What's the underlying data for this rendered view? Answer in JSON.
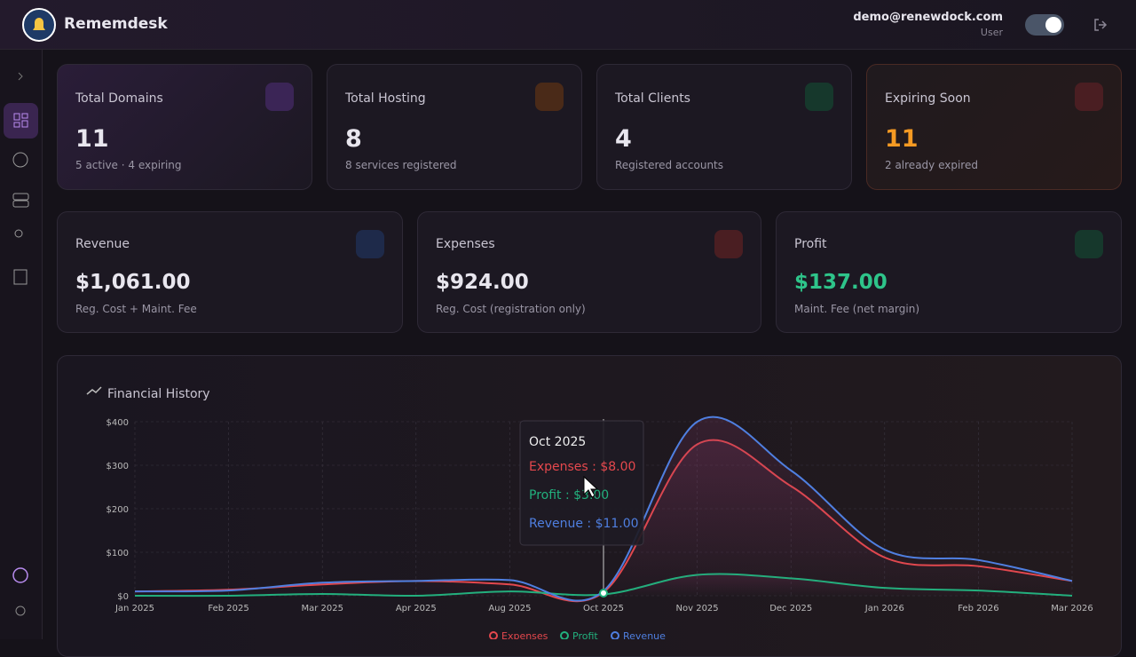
{
  "header": {
    "brand": "Rememdesk",
    "email": "demo@renewdock.com",
    "role": "User"
  },
  "stats": [
    {
      "title": "Total Domains",
      "value": "11",
      "note": "5 active · 4 expiring"
    },
    {
      "title": "Total Hosting",
      "value": "8",
      "note": "8 services registered"
    },
    {
      "title": "Total Clients",
      "value": "4",
      "note": "Registered accounts"
    },
    {
      "title": "Expiring Soon",
      "value": "11",
      "note": "2 already expired"
    }
  ],
  "finance": [
    {
      "title": "Revenue",
      "value": "$1,061.00",
      "note": "Reg. Cost + Maint. Fee"
    },
    {
      "title": "Expenses",
      "value": "$924.00",
      "note": "Reg. Cost (registration only)"
    },
    {
      "title": "Profit",
      "value": "$137.00",
      "note": "Maint. Fee (net margin)"
    }
  ],
  "chart_data": {
    "type": "line",
    "title": "Financial History",
    "categories": [
      "Jan 2025",
      "Feb 2025",
      "Mar 2025",
      "Apr 2025",
      "Aug 2025",
      "Oct 2025",
      "Nov 2025",
      "Dec 2025",
      "Jan 2026",
      "Feb 2026",
      "Mar 2026"
    ],
    "series": [
      {
        "name": "Expenses",
        "color": "#e5484d",
        "values": [
          10,
          14,
          26,
          34,
          26,
          8,
          348,
          252,
          88,
          68,
          34
        ]
      },
      {
        "name": "Profit",
        "color": "#22b07d",
        "values": [
          0,
          0,
          4,
          0,
          10,
          3,
          48,
          40,
          18,
          12,
          0
        ]
      },
      {
        "name": "Revenue",
        "color": "#4f7fe0",
        "values": [
          10,
          12,
          30,
          34,
          36,
          11,
          400,
          288,
          106,
          82,
          34
        ]
      }
    ],
    "ylim": [
      0,
      400
    ],
    "yticks": [
      {
        "value": 0,
        "label": "$0"
      },
      {
        "value": 100,
        "label": "$100"
      },
      {
        "value": 200,
        "label": "$200"
      },
      {
        "value": 300,
        "label": "$300"
      },
      {
        "value": 400,
        "label": "$400"
      }
    ],
    "grid": true,
    "tooltip": {
      "title": "Oct 2025",
      "lines": [
        "Expenses : $8.00",
        "Profit : $3.00",
        "Revenue : $11.00"
      ]
    }
  }
}
